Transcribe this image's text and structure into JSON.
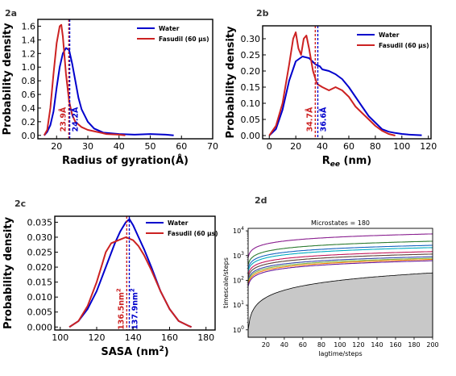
{
  "chart_data": [
    {
      "panel": "2a",
      "type": "line",
      "xlabel": "Radius of gyration(Å)",
      "ylabel": "Probability density",
      "xlim": [
        14,
        70
      ],
      "ylim": [
        -0.05,
        1.7
      ],
      "xticks": [
        20,
        30,
        40,
        50,
        60,
        70
      ],
      "yticks": [
        0.0,
        0.2,
        0.4,
        0.6,
        0.8,
        1.0,
        1.2,
        1.4,
        1.6
      ],
      "xtick_labels": [
        "20",
        "30",
        "40",
        "50",
        "60",
        "70"
      ],
      "ytick_labels": [
        "0.0",
        "0.2",
        "0.4",
        "0.6",
        "0.8",
        "1.0",
        "1.2",
        "1.4",
        "1.6"
      ],
      "grid": false,
      "legend": "top-right",
      "series": [
        {
          "name": "Water",
          "color": "#0000cc",
          "x": [
            16,
            17,
            18,
            19,
            20,
            21,
            22,
            23,
            24,
            25,
            26,
            27,
            28,
            30,
            32,
            35,
            40,
            45,
            50,
            55,
            57.5
          ],
          "y": [
            0.0,
            0.05,
            0.15,
            0.35,
            0.7,
            1.0,
            1.2,
            1.28,
            1.25,
            1.05,
            0.8,
            0.55,
            0.38,
            0.2,
            0.1,
            0.04,
            0.02,
            0.01,
            0.02,
            0.01,
            0.0
          ]
        },
        {
          "name": "Fasudil (60 μs)",
          "color": "#cc2222",
          "x": [
            16,
            17,
            18,
            19,
            20,
            21,
            21.5,
            22,
            23,
            24,
            25,
            26,
            28,
            30,
            33,
            36,
            40,
            42
          ],
          "y": [
            0.0,
            0.08,
            0.4,
            0.9,
            1.35,
            1.6,
            1.62,
            1.45,
            0.9,
            0.5,
            0.3,
            0.2,
            0.12,
            0.08,
            0.05,
            0.02,
            0.01,
            0.0
          ]
        }
      ],
      "annotations": [
        {
          "text": "23.9Å",
          "x": 23.9,
          "color": "#cc2222"
        },
        {
          "text": "24.2Å",
          "x": 24.2,
          "color": "#0000cc"
        }
      ]
    },
    {
      "panel": "2b",
      "type": "line",
      "xlabel": "R",
      "xlabel_sub": "ee",
      "xlabel_unit": " (nm)",
      "ylabel": "Probability density",
      "xlim": [
        -5,
        122
      ],
      "ylim": [
        -0.01,
        0.34
      ],
      "xticks": [
        0,
        20,
        40,
        60,
        80,
        100,
        120
      ],
      "yticks": [
        0.0,
        0.05,
        0.1,
        0.15,
        0.2,
        0.25,
        0.3
      ],
      "xtick_labels": [
        "0",
        "20",
        "40",
        "60",
        "80",
        "100",
        "120"
      ],
      "ytick_labels": [
        "0.00",
        "0.05",
        "0.10",
        "0.15",
        "0.20",
        "0.25",
        "0.30"
      ],
      "grid": false,
      "legend": "top-right",
      "series": [
        {
          "name": "Water",
          "color": "#0000cc",
          "x": [
            0,
            5,
            10,
            15,
            20,
            25,
            30,
            35,
            38,
            40,
            45,
            50,
            55,
            60,
            65,
            70,
            75,
            80,
            85,
            90,
            95,
            100,
            105,
            110,
            115
          ],
          "y": [
            0.0,
            0.02,
            0.08,
            0.17,
            0.23,
            0.245,
            0.24,
            0.22,
            0.215,
            0.205,
            0.2,
            0.19,
            0.175,
            0.15,
            0.12,
            0.09,
            0.06,
            0.04,
            0.02,
            0.012,
            0.008,
            0.005,
            0.003,
            0.002,
            0.001
          ]
        },
        {
          "name": "Fasudil (60 μs)",
          "color": "#cc2222",
          "x": [
            0,
            5,
            10,
            15,
            18,
            20,
            22,
            24,
            26,
            28,
            30,
            33,
            36,
            40,
            45,
            50,
            55,
            60,
            65,
            70,
            75,
            80,
            85,
            90,
            95
          ],
          "y": [
            0.0,
            0.03,
            0.1,
            0.22,
            0.3,
            0.32,
            0.27,
            0.25,
            0.3,
            0.31,
            0.27,
            0.2,
            0.16,
            0.15,
            0.14,
            0.15,
            0.14,
            0.12,
            0.09,
            0.07,
            0.05,
            0.03,
            0.015,
            0.005,
            0.0
          ]
        }
      ],
      "annotations": [
        {
          "text": "34.7Å",
          "x": 34.7,
          "color": "#cc2222"
        },
        {
          "text": "36.6Å",
          "x": 36.6,
          "color": "#0000cc"
        }
      ]
    },
    {
      "panel": "2c",
      "type": "line",
      "xlabel": "SASA (nm",
      "xlabel_sup": "2",
      "xlabel_close": ")",
      "ylabel": "Probability density",
      "xlim": [
        97,
        185
      ],
      "ylim": [
        -0.001,
        0.037
      ],
      "xticks": [
        100,
        120,
        140,
        160,
        180
      ],
      "yticks": [
        0.0,
        0.005,
        0.01,
        0.015,
        0.02,
        0.025,
        0.03,
        0.035
      ],
      "xtick_labels": [
        "100",
        "120",
        "140",
        "160",
        "180"
      ],
      "ytick_labels": [
        "0.000",
        "0.005",
        "0.010",
        "0.015",
        "0.020",
        "0.025",
        "0.030",
        "0.035"
      ],
      "grid": false,
      "legend": "top-right",
      "series": [
        {
          "name": "Water",
          "color": "#0000cc",
          "x": [
            105,
            110,
            115,
            120,
            125,
            130,
            133,
            136,
            138,
            140,
            143,
            146,
            150,
            155,
            160,
            165,
            170,
            172
          ],
          "y": [
            0.0,
            0.002,
            0.006,
            0.012,
            0.02,
            0.028,
            0.032,
            0.035,
            0.036,
            0.034,
            0.03,
            0.026,
            0.02,
            0.012,
            0.006,
            0.002,
            0.0005,
            0.0
          ]
        },
        {
          "name": "Fasudil (60 μs)",
          "color": "#cc2222",
          "x": [
            105,
            110,
            115,
            120,
            123,
            125,
            128,
            132,
            136,
            140,
            143,
            146,
            150,
            155,
            160,
            165,
            170,
            172
          ],
          "y": [
            0.0,
            0.002,
            0.007,
            0.015,
            0.021,
            0.025,
            0.028,
            0.029,
            0.03,
            0.029,
            0.027,
            0.024,
            0.019,
            0.012,
            0.006,
            0.002,
            0.0005,
            0.0
          ]
        }
      ],
      "annotations": [
        {
          "text": "136.5nm",
          "text_sup": "2",
          "x": 136.5,
          "color": "#cc2222"
        },
        {
          "text": "137.9nm",
          "text_sup": "2",
          "x": 137.9,
          "color": "#0000cc"
        }
      ]
    },
    {
      "panel": "2d",
      "type": "line",
      "title": "Microstates = 180",
      "xlabel": "lagtime/steps",
      "ylabel": "timescale/steps",
      "xlim": [
        1,
        200
      ],
      "ylim_log10": [
        -0.3,
        4.1
      ],
      "yscale": "log",
      "xticks": [
        20,
        40,
        60,
        80,
        100,
        120,
        140,
        160,
        180,
        200
      ],
      "xtick_labels": [
        "20",
        "40",
        "60",
        "80",
        "100",
        "120",
        "140",
        "160",
        "180",
        "200"
      ],
      "yticks_exp": [
        0,
        1,
        2,
        3,
        4
      ],
      "ytick_base": "10",
      "grid": false,
      "shaded_region": {
        "color": "#c8c8c8",
        "boundary_y": [
          1,
          200
        ]
      },
      "series": [
        {
          "color": "#8a2090",
          "y_at_lag1": 850,
          "y_at_lag200": 7500
        },
        {
          "color": "#2e7d32",
          "y_at_lag1": 420,
          "y_at_lag200": 3800
        },
        {
          "color": "#1565c0",
          "y_at_lag1": 300,
          "y_at_lag200": 2600
        },
        {
          "color": "#00acc1",
          "y_at_lag1": 230,
          "y_at_lag200": 2100
        },
        {
          "color": "#c2185b",
          "y_at_lag1": 170,
          "y_at_lag200": 1450
        },
        {
          "color": "#5d4037",
          "y_at_lag1": 130,
          "y_at_lag200": 1150
        },
        {
          "color": "#3949ab",
          "y_at_lag1": 100,
          "y_at_lag200": 900
        },
        {
          "color": "#7cb342",
          "y_at_lag1": 85,
          "y_at_lag200": 780
        },
        {
          "color": "#f57c00",
          "y_at_lag1": 70,
          "y_at_lag200": 700
        },
        {
          "color": "#6a1b9a",
          "y_at_lag1": 58,
          "y_at_lag200": 620
        }
      ]
    }
  ],
  "panels": {
    "a_label": "2a",
    "b_label": "2b",
    "c_label": "2c",
    "d_label": "2d"
  }
}
